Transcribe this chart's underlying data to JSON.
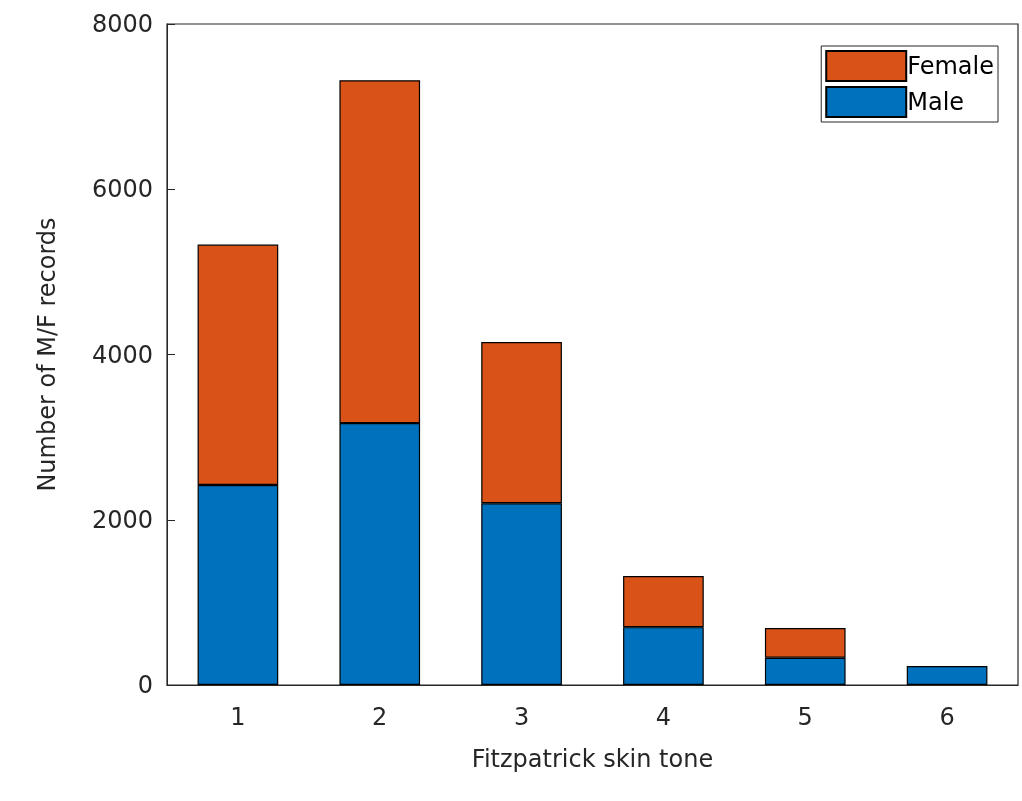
{
  "chart_data": {
    "type": "bar",
    "stacked": true,
    "xlabel": "Fitzpatrick skin tone",
    "ylabel": "Number of M/F records",
    "categories": [
      "1",
      "2",
      "3",
      "4",
      "5",
      "6"
    ],
    "ylim": [
      0,
      8000
    ],
    "yticks": [
      0,
      2000,
      4000,
      6000,
      8000
    ],
    "series": [
      {
        "name": "Male",
        "color": "#0072bd",
        "values": [
          2420,
          3170,
          2200,
          700,
          330,
          230
        ]
      },
      {
        "name": "Female",
        "color": "#d95319",
        "values": [
          2910,
          4150,
          1950,
          620,
          360,
          null
        ]
      }
    ],
    "legend": "top right",
    "grid": false
  }
}
